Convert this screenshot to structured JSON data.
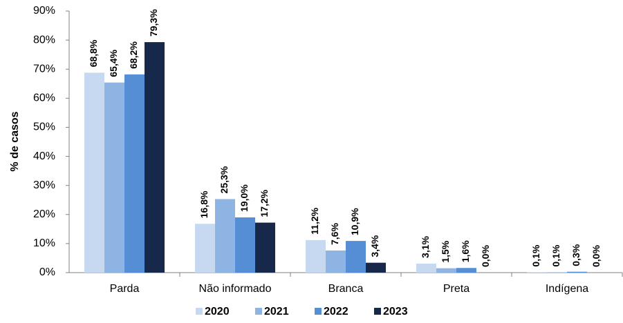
{
  "chart_data": {
    "type": "bar",
    "y_label": "% de casos",
    "categories": [
      "Parda",
      "Não informado",
      "Branca",
      "Preta",
      "Indígena"
    ],
    "series": [
      {
        "name": "2020",
        "color": "#c6d9f1",
        "values": [
          68.8,
          16.8,
          11.2,
          3.1,
          0.1
        ],
        "value_labels": [
          "68,8%",
          "16,8%",
          "11,2%",
          "3,1%",
          "0,1%"
        ]
      },
      {
        "name": "2021",
        "color": "#8eb4e3",
        "values": [
          65.4,
          25.3,
          7.6,
          1.5,
          0.1
        ],
        "value_labels": [
          "65,4%",
          "25,3%",
          "7,6%",
          "1,5%",
          "0,1%"
        ]
      },
      {
        "name": "2022",
        "color": "#558ed5",
        "values": [
          68.2,
          19.0,
          10.9,
          1.6,
          0.3
        ],
        "value_labels": [
          "68,2%",
          "19,0%",
          "10,9%",
          "1,6%",
          "0,3%"
        ]
      },
      {
        "name": "2023",
        "color": "#17294a",
        "values": [
          79.3,
          17.2,
          3.4,
          0.0,
          0.0
        ],
        "value_labels": [
          "79,3%",
          "17,2%",
          "3,4%",
          "0,0%",
          "0,0%"
        ]
      }
    ],
    "ylim": [
      0,
      90
    ],
    "yticks": [
      {
        "value": 0,
        "label": "0%"
      },
      {
        "value": 10,
        "label": "10%"
      },
      {
        "value": 20,
        "label": "20%"
      },
      {
        "value": 30,
        "label": "30%"
      },
      {
        "value": 40,
        "label": "40%"
      },
      {
        "value": 50,
        "label": "50%"
      },
      {
        "value": 60,
        "label": "60%"
      },
      {
        "value": 70,
        "label": "70%"
      },
      {
        "value": 80,
        "label": "80%"
      },
      {
        "value": 90,
        "label": "90%"
      }
    ]
  }
}
